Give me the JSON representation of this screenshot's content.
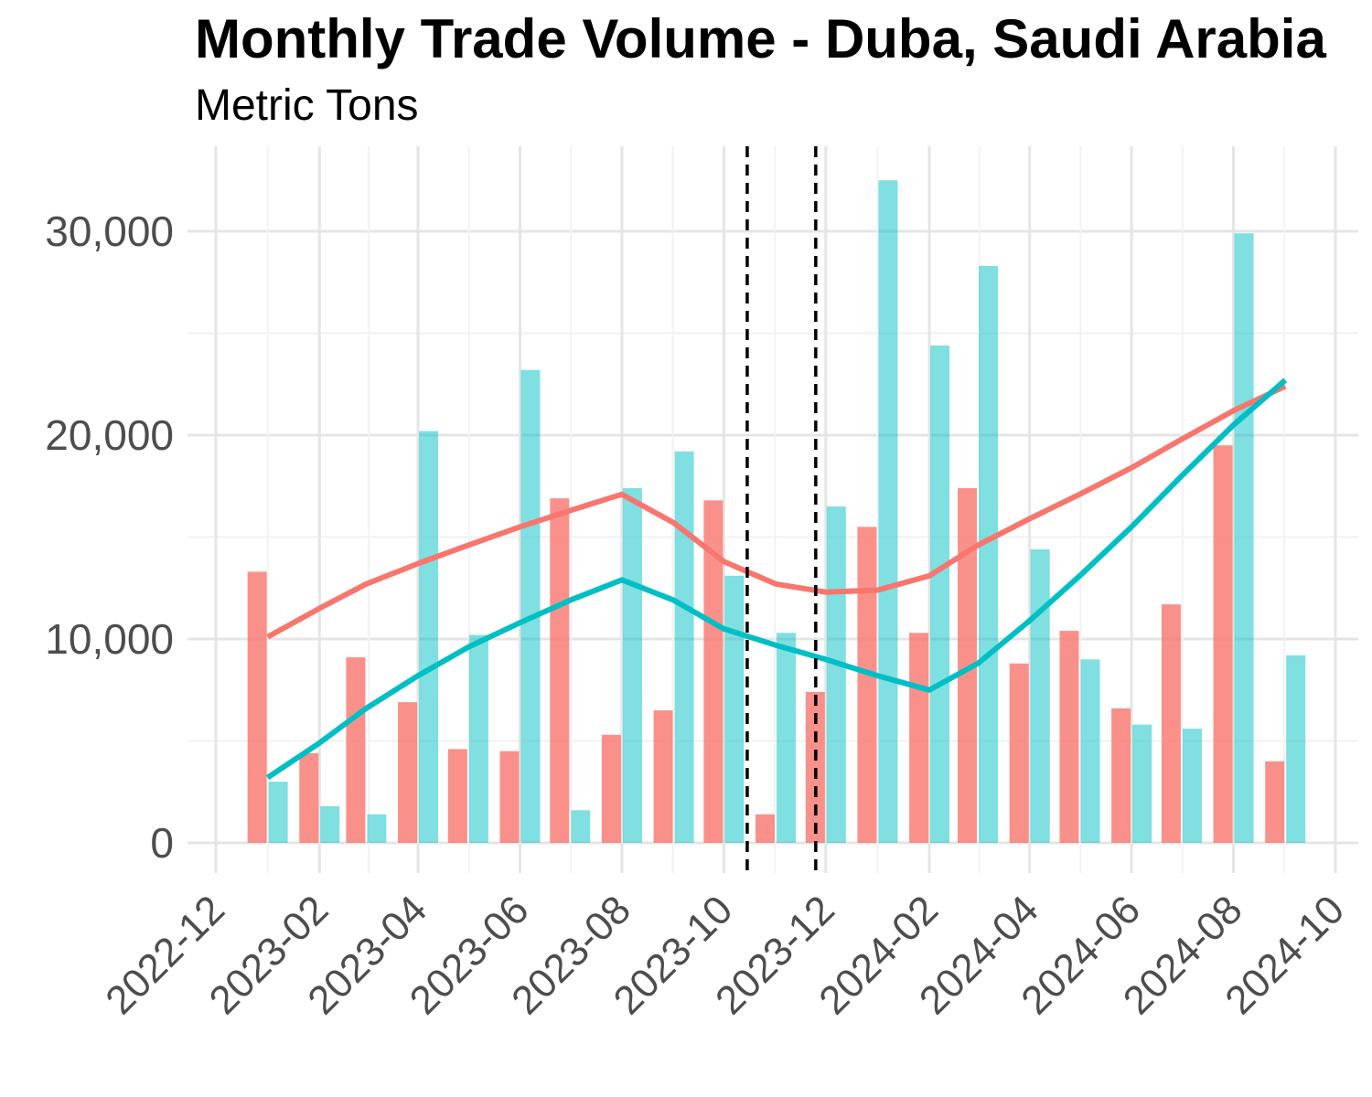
{
  "chart_data": {
    "type": "bar",
    "title": "Monthly Trade Volume - Duba, Saudi Arabia",
    "subtitle": "Metric Tons",
    "xlabel": "",
    "ylabel": "",
    "x_ticks": [
      "2022-12",
      "2023-02",
      "2023-04",
      "2023-06",
      "2023-08",
      "2023-10",
      "2023-12",
      "2024-02",
      "2024-04",
      "2024-06",
      "2024-08",
      "2024-10"
    ],
    "y_ticks": [
      0,
      10000,
      20000,
      30000
    ],
    "y_tick_labels": [
      "0",
      "10,000",
      "20,000",
      "30,000"
    ],
    "xlim": [
      "2022-12-01",
      "2024-10-01"
    ],
    "ylim": [
      0,
      35000
    ],
    "grid": true,
    "legend": "none",
    "months": [
      "2023-01",
      "2023-02",
      "2023-03",
      "2023-04",
      "2023-05",
      "2023-06",
      "2023-07",
      "2023-08",
      "2023-09",
      "2023-10",
      "2023-11",
      "2023-12",
      "2024-01",
      "2024-02",
      "2024-03",
      "2024-04",
      "2024-05",
      "2024-06",
      "2024-07",
      "2024-08",
      "2024-09"
    ],
    "series": [
      {
        "color": "#F8766D",
        "bar_values": [
          13300,
          4400,
          9100,
          6900,
          4600,
          4500,
          16900,
          5300,
          6500,
          16800,
          1400,
          7400,
          15500,
          10300,
          17400,
          8800,
          10400,
          6600,
          11700,
          19500,
          4000
        ],
        "trend_values": [
          10100,
          11500,
          12700,
          13700,
          14600,
          15500,
          16300,
          17100,
          15700,
          13800,
          12700,
          12300,
          12400,
          13100,
          14600,
          15900,
          17100,
          18400,
          19800,
          21200,
          22400
        ]
      },
      {
        "color": "#00BFC4",
        "bar_values": [
          3000,
          1800,
          1400,
          20200,
          10200,
          23200,
          1600,
          17400,
          19200,
          13100,
          10300,
          16500,
          32500,
          24400,
          28300,
          14400,
          9000,
          5800,
          5600,
          29900,
          9200
        ],
        "trend_values": [
          3200,
          4900,
          6600,
          8200,
          9600,
          10800,
          11900,
          12900,
          11900,
          10500,
          9700,
          9000,
          8200,
          7500,
          8800,
          10900,
          13100,
          15500,
          18000,
          20500,
          22700
        ]
      }
    ],
    "reference_lines": [
      {
        "x": "2023-10-15",
        "style": "dashed",
        "color": "#000000"
      },
      {
        "x": "2023-11-25",
        "style": "dashed",
        "color": "#000000"
      }
    ]
  }
}
